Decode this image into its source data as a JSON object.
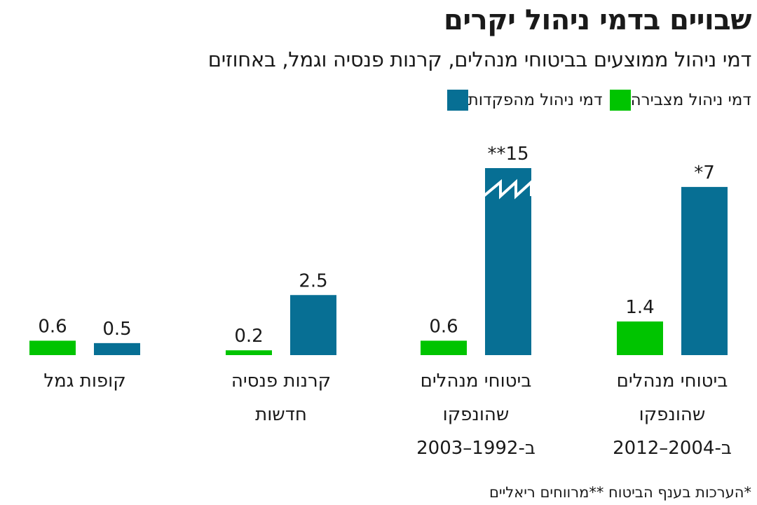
{
  "title": "שבויים בדמי ניהול יקרים",
  "subtitle": "דמי ניהול ממוצעים בביטוחי מנהלים, קרנות פנסיה וגמל, באחוזים",
  "footnote": "*הערכות בענף הביטוח **מרווחים ריאליים",
  "colors": {
    "deposit": "#076f94",
    "accumulation": "#00c400",
    "text": "#1a1a1a"
  },
  "legend": [
    {
      "key": "deposit",
      "label": "דמי ניהול מהפקדות"
    },
    {
      "key": "accumulation",
      "label": "דמי ניהול מצבירה"
    }
  ],
  "chart_data": {
    "type": "bar",
    "orientation": "vertical",
    "direction": "rtl",
    "categories": [
      {
        "lines": [
          "ביטוחי מנהלים",
          "שהונפקו",
          "ב-2004–2012"
        ]
      },
      {
        "lines": [
          "ביטוחי מנהלים",
          "שהונפקו",
          "ב-1992–2003"
        ]
      },
      {
        "lines": [
          "קרנות פנסיה",
          "חדשות"
        ]
      },
      {
        "lines": [
          "קופות גמל"
        ]
      }
    ],
    "series": [
      {
        "name": "דמי ניהול מהפקדות",
        "key": "deposit",
        "values": [
          7,
          15,
          2.5,
          0.5
        ],
        "labels": [
          "*7",
          "**15",
          "2.5",
          "0.5"
        ],
        "broken": [
          false,
          true,
          false,
          false
        ]
      },
      {
        "name": "דמי ניהול מצבירה",
        "key": "accumulation",
        "values": [
          1.4,
          0.6,
          0.2,
          0.6
        ],
        "labels": [
          "1.4",
          "0.6",
          "0.2",
          "0.6"
        ],
        "broken": [
          false,
          false,
          false,
          false
        ]
      }
    ],
    "ylabel": "",
    "axis_break": true,
    "grid": false,
    "legend_position": "top-right"
  }
}
